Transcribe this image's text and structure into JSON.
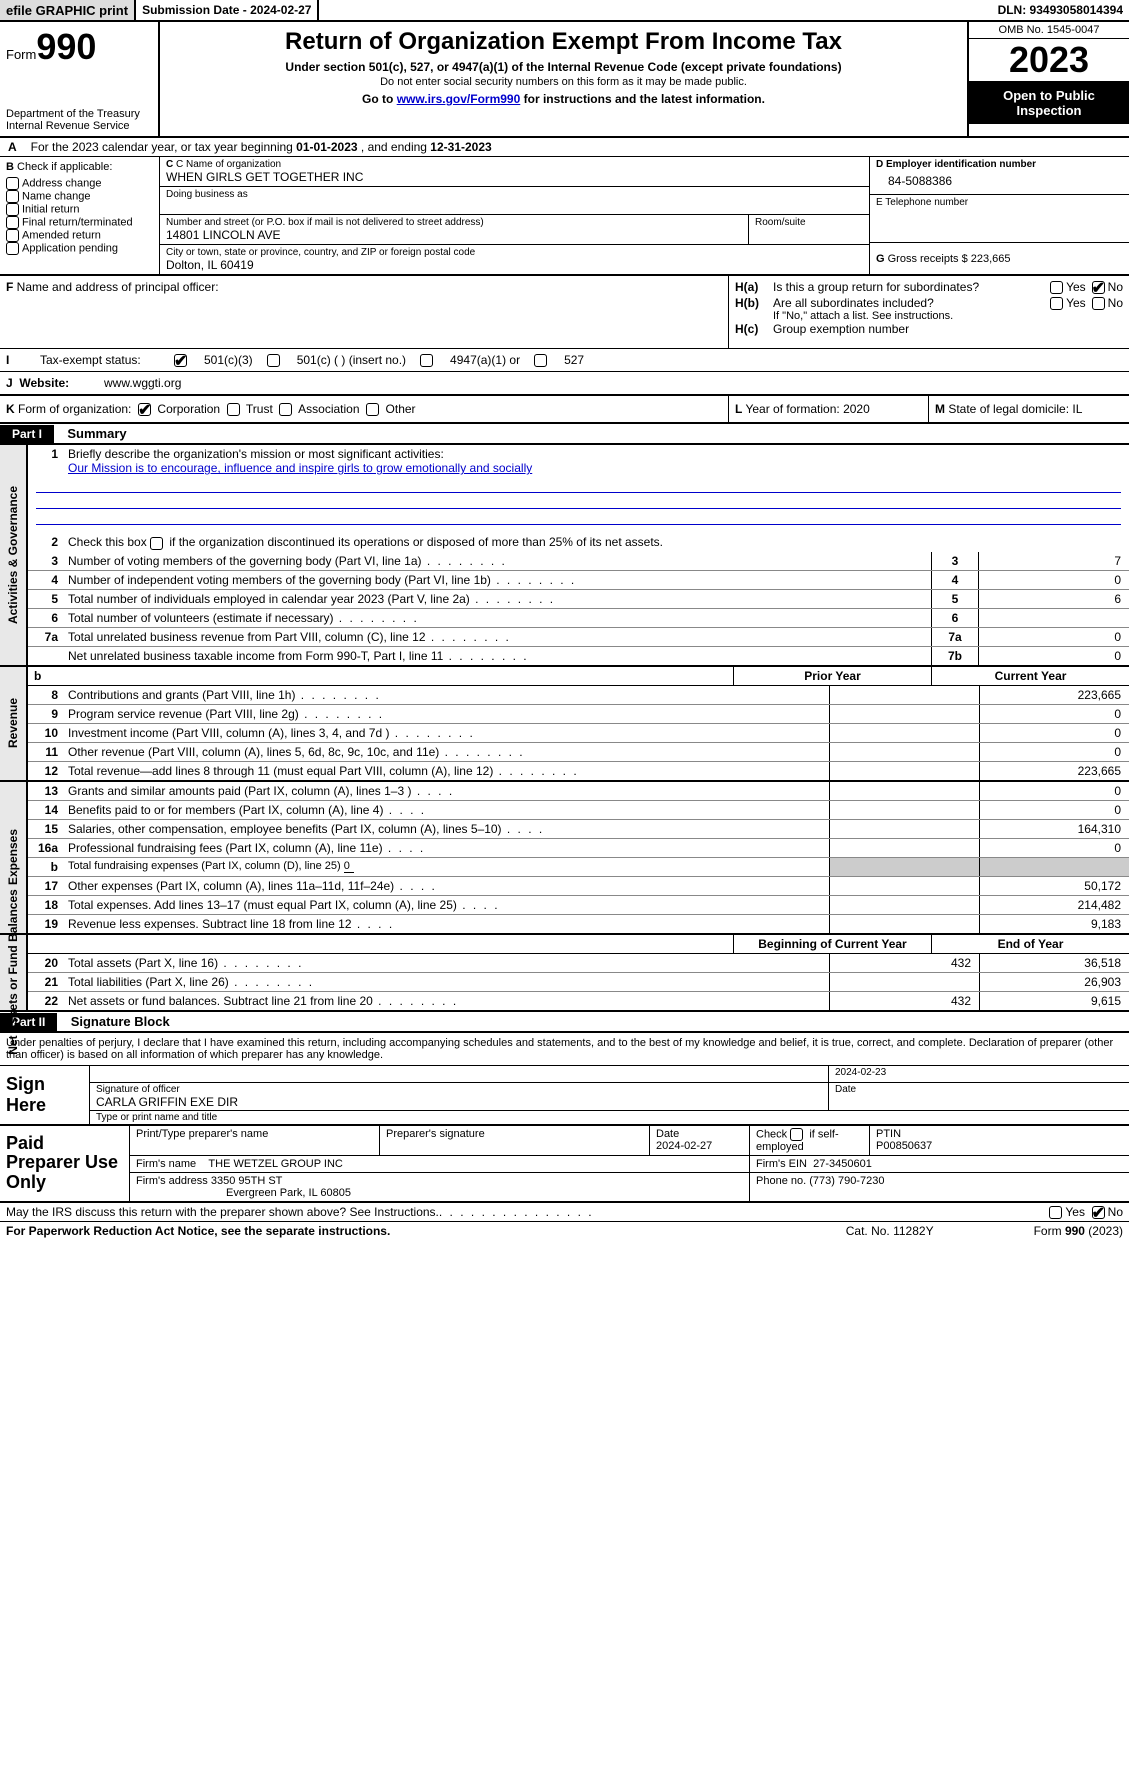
{
  "topbar": {
    "graphic": "efile GRAPHIC print",
    "submission": "Submission Date - 2024-02-27",
    "dln": "DLN: 93493058014394"
  },
  "header": {
    "form_prefix": "Form",
    "form_num": "990",
    "dept": "Department of the Treasury",
    "irs": "Internal Revenue Service",
    "title": "Return of Organization Exempt From Income Tax",
    "sub1": "Under section 501(c), 527, or 4947(a)(1) of the Internal Revenue Code (except private foundations)",
    "sub2": "Do not enter social security numbers on this form as it may be made public.",
    "sub3_pre": "Go to ",
    "sub3_link": "www.irs.gov/Form990",
    "sub3_post": " for instructions and the latest information.",
    "omb": "OMB No. 1545-0047",
    "year": "2023",
    "inspect": "Open to Public Inspection"
  },
  "secA": {
    "pre": "For the 2023 calendar year, or tax year beginning ",
    "begin": "01-01-2023",
    "mid": "  , and ending ",
    "end": "12-31-2023"
  },
  "colB": {
    "hdr": "B",
    "label": " Check if applicable:",
    "items": [
      "Address change",
      "Name change",
      "Initial return",
      "Final return/terminated",
      "Amended return",
      "Application pending"
    ]
  },
  "colC": {
    "name_lbl": "C Name of organization",
    "name": "WHEN GIRLS GET TOGETHER INC",
    "dba_lbl": "Doing business as",
    "addr_lbl": "Number and street (or P.O. box if mail is not delivered to street address)",
    "addr": "14801 LINCOLN AVE",
    "room_lbl": "Room/suite",
    "city_lbl": "City or town, state or province, country, and ZIP or foreign postal code",
    "city": "Dolton, IL   60419"
  },
  "colD": {
    "ein_lbl": "D Employer identification number",
    "ein": "84-5088386",
    "tel_lbl": "E Telephone number",
    "gross_lbl": "G",
    "gross_txt": " Gross receipts $ ",
    "gross": "223,665"
  },
  "rowF": {
    "lbl": "F",
    "txt": " Name and address of principal officer:"
  },
  "rowH": {
    "ha_lbl": "H(a)",
    "ha_txt": "Is this a group return for subordinates?",
    "hb_lbl": "H(b)",
    "hb_txt": "Are all subordinates included?",
    "hb_note": "If \"No,\" attach a list. See instructions.",
    "hc_lbl": "H(c)",
    "hc_txt": "Group exemption number",
    "yes": "Yes",
    "no": "No"
  },
  "rowI": {
    "lbl": "I",
    "txt": "Tax-exempt status:",
    "o1": "501(c)(3)",
    "o2": "501(c) (   ) (insert no.)",
    "o3": "4947(a)(1) or",
    "o4": "527"
  },
  "rowJ": {
    "lbl": "J",
    "txt": "Website:",
    "val": "www.wggti.org"
  },
  "rowK": {
    "lbl": "K",
    "txt": " Form of organization:",
    "o1": "Corporation",
    "o2": "Trust",
    "o3": "Association",
    "o4": "Other"
  },
  "rowL": {
    "lbl": "L",
    "txt": " Year of formation: ",
    "val": "2020"
  },
  "rowM": {
    "lbl": "M",
    "txt": " State of legal domicile: ",
    "val": "IL"
  },
  "part1": {
    "hdr": "Part I",
    "title": "Summary"
  },
  "gov": {
    "label": "Activities & Governance",
    "l1_num": "1",
    "l1": "Briefly describe the organization's mission or most significant activities:",
    "mission": "Our Mission is to encourage, influence and inspire girls to grow emotionally and socially",
    "l2_num": "2",
    "l2": "Check this box ",
    "l2b": " if the organization discontinued its operations or disposed of more than 25% of its net assets.",
    "lines": [
      {
        "n": "3",
        "d": "Number of voting members of the governing body (Part VI, line 1a)",
        "box": "3",
        "v": "7"
      },
      {
        "n": "4",
        "d": "Number of independent voting members of the governing body (Part VI, line 1b)",
        "box": "4",
        "v": "0"
      },
      {
        "n": "5",
        "d": "Total number of individuals employed in calendar year 2023 (Part V, line 2a)",
        "box": "5",
        "v": "6"
      },
      {
        "n": "6",
        "d": "Total number of volunteers (estimate if necessary)",
        "box": "6",
        "v": ""
      },
      {
        "n": "7a",
        "d": "Total unrelated business revenue from Part VIII, column (C), line 12",
        "box": "7a",
        "v": "0"
      },
      {
        "n": "",
        "d": "Net unrelated business taxable income from Form 990-T, Part I, line 11",
        "box": "7b",
        "v": "0"
      }
    ]
  },
  "cols": {
    "b": "b",
    "prior": "Prior Year",
    "current": "Current Year",
    "beg": "Beginning of Current Year",
    "end": "End of Year"
  },
  "rev": {
    "label": "Revenue",
    "lines": [
      {
        "n": "8",
        "d": "Contributions and grants (Part VIII, line 1h)",
        "p": "",
        "c": "223,665"
      },
      {
        "n": "9",
        "d": "Program service revenue (Part VIII, line 2g)",
        "p": "",
        "c": "0"
      },
      {
        "n": "10",
        "d": "Investment income (Part VIII, column (A), lines 3, 4, and 7d )",
        "p": "",
        "c": "0"
      },
      {
        "n": "11",
        "d": "Other revenue (Part VIII, column (A), lines 5, 6d, 8c, 9c, 10c, and 11e)",
        "p": "",
        "c": "0"
      },
      {
        "n": "12",
        "d": "Total revenue—add lines 8 through 11 (must equal Part VIII, column (A), line 12)",
        "p": "",
        "c": "223,665"
      }
    ]
  },
  "exp": {
    "label": "Expenses",
    "lines": [
      {
        "n": "13",
        "d": "Grants and similar amounts paid (Part IX, column (A), lines 1–3 )",
        "p": "",
        "c": "0"
      },
      {
        "n": "14",
        "d": "Benefits paid to or for members (Part IX, column (A), line 4)",
        "p": "",
        "c": "0"
      },
      {
        "n": "15",
        "d": "Salaries, other compensation, employee benefits (Part IX, column (A), lines 5–10)",
        "p": "",
        "c": "164,310"
      },
      {
        "n": "16a",
        "d": "Professional fundraising fees (Part IX, column (A), line 11e)",
        "p": "",
        "c": "0"
      },
      {
        "n": "b",
        "d": "Total fundraising expenses (Part IX, column (D), line 25) ",
        "p": "shade",
        "c": "shade",
        "inline": "0"
      },
      {
        "n": "17",
        "d": "Other expenses (Part IX, column (A), lines 11a–11d, 11f–24e)",
        "p": "",
        "c": "50,172"
      },
      {
        "n": "18",
        "d": "Total expenses. Add lines 13–17 (must equal Part IX, column (A), line 25)",
        "p": "",
        "c": "214,482"
      },
      {
        "n": "19",
        "d": "Revenue less expenses. Subtract line 18 from line 12",
        "p": "",
        "c": "9,183"
      }
    ]
  },
  "net": {
    "label": "Net Assets or Fund Balances",
    "lines": [
      {
        "n": "20",
        "d": "Total assets (Part X, line 16)",
        "p": "432",
        "c": "36,518"
      },
      {
        "n": "21",
        "d": "Total liabilities (Part X, line 26)",
        "p": "",
        "c": "26,903"
      },
      {
        "n": "22",
        "d": "Net assets or fund balances. Subtract line 21 from line 20",
        "p": "432",
        "c": "9,615"
      }
    ]
  },
  "part2": {
    "hdr": "Part II",
    "title": "Signature Block"
  },
  "penalty": "Under penalties of perjury, I declare that I have examined this return, including accompanying schedules and statements, and to the best of my knowledge and belief, it is true, correct, and complete. Declaration of preparer (other than officer) is based on all information of which preparer has any knowledge.",
  "sign": {
    "lbl": "Sign Here",
    "sig_lbl": "Signature of officer",
    "date_lbl": "Date",
    "date": "2024-02-23",
    "name": "CARLA GRIFFIN  EXE DIR",
    "name_lbl": "Type or print name and title"
  },
  "prep": {
    "lbl": "Paid Preparer Use Only",
    "h1": "Print/Type preparer's name",
    "h2": "Preparer's signature",
    "h3": "Date",
    "date": "2024-02-27",
    "h4a": "Check",
    "h4b": "if self-employed",
    "h5": "PTIN",
    "ptin": "P00850637",
    "firm_lbl": "Firm's name",
    "firm": "THE WETZEL GROUP INC",
    "ein_lbl": "Firm's EIN",
    "ein": "27-3450601",
    "addr_lbl": "Firm's address",
    "addr1": "3350 95TH ST",
    "addr2": "Evergreen Park, IL   60805",
    "phone_lbl": "Phone no.",
    "phone": "(773) 790-7230"
  },
  "discuss": {
    "txt": "May the IRS discuss this return with the preparer shown above? See Instructions.",
    "yes": "Yes",
    "no": "No"
  },
  "footer": {
    "l": "For Paperwork Reduction Act Notice, see the separate instructions.",
    "c": "Cat. No. 11282Y",
    "r": "Form ",
    "r2": "990",
    "r3": " (2023)"
  }
}
